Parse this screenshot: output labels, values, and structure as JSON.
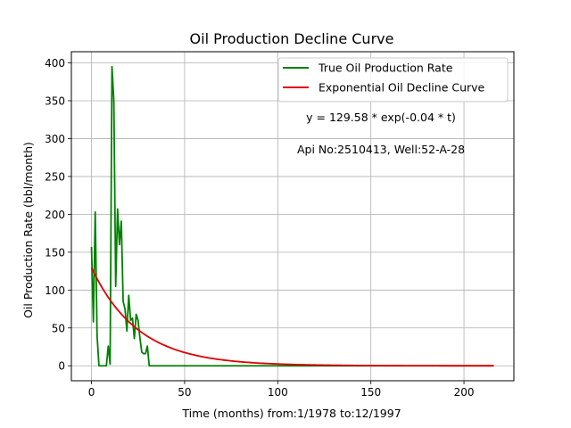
{
  "chart_data": {
    "type": "line",
    "title": "Oil Production Decline Curve",
    "xlabel": "Time (months) from:1/1978 to:12/1997",
    "ylabel": "Oil Production Rate (bbl/month)",
    "xlim": [
      -10.8,
      226.8
    ],
    "ylim": [
      -19.75,
      414.75
    ],
    "xticks": [
      0,
      50,
      100,
      150,
      200
    ],
    "yticks": [
      0,
      50,
      100,
      150,
      200,
      250,
      300,
      350,
      400
    ],
    "grid": true,
    "legend_position": "top-right",
    "annotations": [
      "y = 129.58 * exp(-0.04 * t)",
      "Api No:2510413, Well:52-A-28"
    ],
    "series": [
      {
        "name": "True Oil Production Rate",
        "color": "#008000",
        "x": [
          0,
          1,
          2,
          3,
          4,
          5,
          6,
          7,
          8,
          9,
          10,
          11,
          12,
          13,
          14,
          15,
          16,
          17,
          18,
          19,
          20,
          21,
          22,
          23,
          24,
          25,
          26,
          27,
          28,
          29,
          30,
          31,
          32,
          33,
          35,
          40,
          60,
          100,
          150,
          200,
          216
        ],
        "y": [
          157,
          58,
          203,
          40,
          0,
          0,
          0,
          0,
          0,
          26,
          2,
          395,
          350,
          105,
          207,
          160,
          191,
          85,
          75,
          46,
          93,
          60,
          63,
          36,
          68,
          60,
          37,
          18,
          16,
          16,
          26,
          0,
          0,
          0,
          0,
          0,
          0,
          0,
          0,
          0,
          0
        ]
      },
      {
        "name": "Exponential Oil Decline Curve",
        "color": "#dd0000",
        "a": 129.58,
        "b": 0.04,
        "x_range": [
          0,
          216
        ]
      }
    ]
  }
}
